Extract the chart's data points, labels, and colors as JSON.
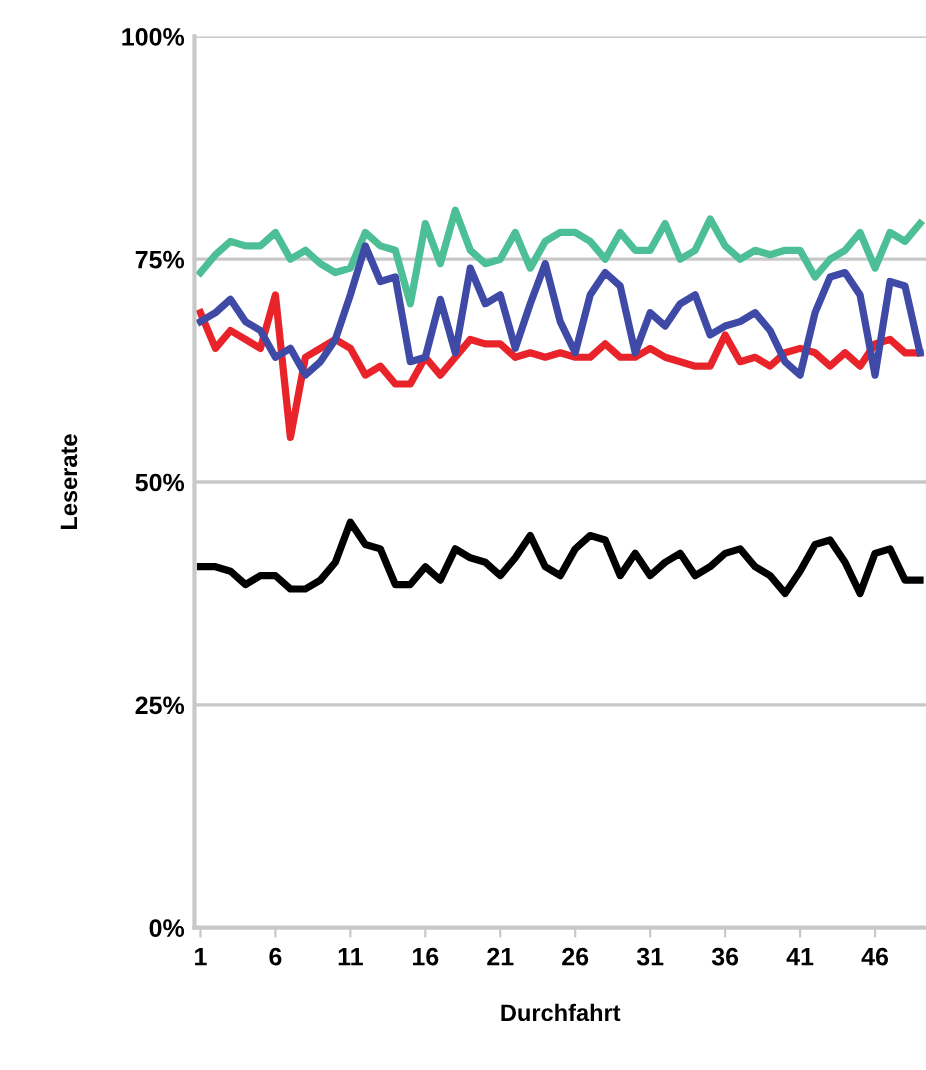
{
  "chart_data": {
    "type": "line",
    "xlabel": "Durchfahrt",
    "ylabel": "Leserate",
    "categories": [
      "1",
      null,
      null,
      null,
      null,
      "6",
      null,
      null,
      null,
      null,
      "11",
      null,
      null,
      null,
      null,
      "16",
      null,
      null,
      null,
      null,
      "21",
      null,
      null,
      null,
      null,
      "26",
      null,
      null,
      null,
      null,
      "31",
      null,
      null,
      null,
      null,
      "36",
      null,
      null,
      null,
      null,
      "41",
      null,
      null,
      null,
      null,
      "46",
      null,
      null,
      null
    ],
    "series": [
      {
        "color": "#4dbf96",
        "values": [
          73.5,
          75.5,
          77,
          76.5,
          76.5,
          78,
          75,
          76,
          74.5,
          73.5,
          74,
          78,
          76.5,
          76,
          70,
          79,
          74.5,
          80.5,
          76,
          74.5,
          75,
          78,
          74,
          77,
          78,
          78,
          77,
          75,
          78,
          76,
          76,
          79,
          75,
          76,
          79.5,
          76.5,
          75,
          76,
          75.5,
          76,
          76,
          73,
          75,
          76,
          78,
          74,
          78,
          77,
          79
        ]
      },
      {
        "color": "#e8242a",
        "values": [
          69,
          65,
          67,
          66,
          65,
          71,
          55,
          64,
          65,
          66,
          65,
          62,
          63,
          61,
          61,
          64,
          62,
          64,
          66,
          65.5,
          65.5,
          64,
          64.5,
          64,
          64.5,
          64,
          64,
          65.5,
          64,
          64,
          65,
          64,
          63.5,
          63,
          63,
          66.5,
          63.5,
          64,
          63,
          64.5,
          65,
          64.5,
          63,
          64.5,
          63,
          65.5,
          66,
          64.5,
          64.5
        ]
      },
      {
        "color": "#3f4aa6",
        "values": [
          68,
          69,
          70.5,
          68,
          67,
          64,
          65,
          62,
          63.5,
          66,
          71,
          76.5,
          72.5,
          73,
          63.5,
          64,
          70.5,
          64.5,
          74,
          70,
          71,
          65,
          70,
          74.5,
          68,
          64.5,
          71,
          73.5,
          72,
          64.5,
          69,
          67.5,
          70,
          71,
          66.5,
          67.5,
          68,
          69,
          67,
          63.5,
          62,
          69,
          73,
          73.5,
          71,
          62,
          72.5,
          72,
          64.5
        ]
      },
      {
        "color": "#000000",
        "values": [
          40.5,
          40.5,
          40,
          38.5,
          39.5,
          39.5,
          38,
          38,
          39,
          41,
          45.5,
          43,
          42.5,
          38.5,
          38.5,
          40.5,
          39,
          42.5,
          41.5,
          41,
          39.5,
          41.5,
          44,
          40.5,
          39.5,
          42.5,
          44,
          43.5,
          39.5,
          42,
          39.5,
          41,
          42,
          39.5,
          40.5,
          42,
          42.5,
          40.5,
          39.5,
          37.5,
          40,
          43,
          43.5,
          41,
          37.5,
          42,
          42.5,
          39,
          39
        ]
      }
    ],
    "ylim": [
      0,
      100
    ],
    "yticks": [
      {
        "value": 0,
        "label": "0%"
      },
      {
        "value": 25,
        "label": "25%"
      },
      {
        "value": 50,
        "label": "50%"
      },
      {
        "value": 75,
        "label": "75%"
      },
      {
        "value": 100,
        "label": "100%"
      }
    ],
    "grid": "y",
    "legend": false,
    "marker": "none",
    "line_style": "solid"
  }
}
